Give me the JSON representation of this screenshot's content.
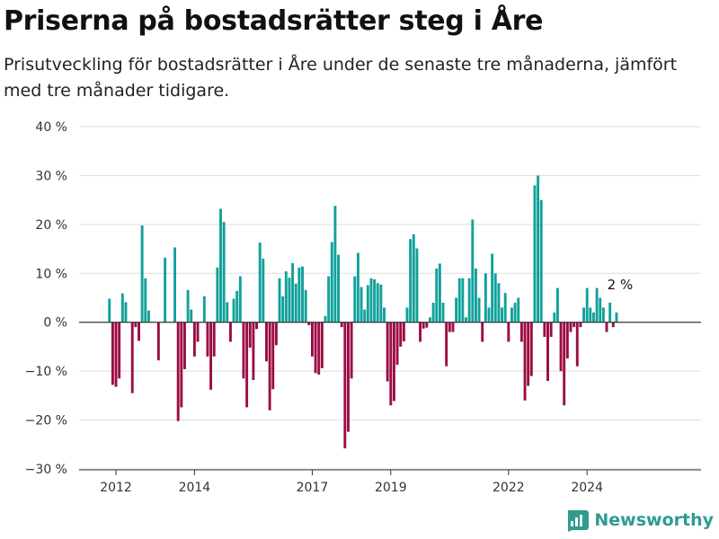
{
  "title": "Priserna på bostadsrätter steg i Åre",
  "subtitle": "Prisutveckling för bostadsrätter i Åre under de senaste tre månaderna, jämfört med tre månader tidigare.",
  "brand": {
    "name": "Newsworthy",
    "icon": "newsworthy-logo-icon"
  },
  "colors": {
    "positive": "#10a19a",
    "negative": "#9b0c44",
    "axis": "#333333",
    "grid": "#dddddd",
    "brand": "#2e9c90"
  },
  "chart_data": {
    "type": "bar",
    "x_start": "2011-11",
    "y_unit": "%",
    "ylim": [
      -30,
      40
    ],
    "yticks": [
      40,
      30,
      20,
      10,
      0,
      -10,
      -20,
      -30
    ],
    "ytick_labels": [
      "40 %",
      "30 %",
      "20 %",
      "10 %",
      "0 %",
      "−10 %",
      "−20 %",
      "−30 %"
    ],
    "xticks": [
      "2012",
      "2014",
      "2017",
      "2019",
      "2022",
      "2024"
    ],
    "xtick_months": [
      "2012-01",
      "2014-01",
      "2017-01",
      "2019-01",
      "2022-01",
      "2024-01"
    ],
    "grid": "horizontal",
    "values": [
      4.8,
      -12.8,
      -13.2,
      -11.5,
      5.9,
      4.1,
      0,
      -14.5,
      -1.0,
      -3.8,
      19.8,
      9.0,
      2.4,
      0,
      0,
      -7.8,
      0,
      13.2,
      0,
      0,
      15.3,
      -20.2,
      -17.4,
      -9.6,
      6.6,
      2.6,
      -7.0,
      -4.0,
      0,
      5.3,
      -7.0,
      -13.8,
      -7.0,
      11.2,
      23.2,
      20.5,
      4.1,
      -4.0,
      4.8,
      6.4,
      9.4,
      -11.5,
      -17.4,
      -5.2,
      -11.8,
      -1.4,
      16.3,
      13.0,
      -8.0,
      -18.0,
      -13.7,
      -4.7,
      9.0,
      5.3,
      10.4,
      9.1,
      12.1,
      7.9,
      11.2,
      11.4,
      6.6,
      -0.6,
      -7.0,
      -10.4,
      -10.7,
      -9.4,
      1.3,
      9.4,
      16.4,
      23.8,
      13.8,
      -1.0,
      -25.8,
      -22.4,
      -11.5,
      9.4,
      14.2,
      7.2,
      2.6,
      7.6,
      9.0,
      8.8,
      8.0,
      7.7,
      3.0,
      -12.1,
      -17.0,
      -16.1,
      -8.7,
      -5.0,
      -3.9,
      3.0,
      17.0,
      18.0,
      15.1,
      -4.0,
      -1.3,
      -1.1,
      1.0,
      4.0,
      11.0,
      12.0,
      4.0,
      -9.0,
      -2.0,
      -2.0,
      5.0,
      9.0,
      9.0,
      1.0,
      9.0,
      21.0,
      11.0,
      5.0,
      -4.0,
      10.0,
      3.0,
      14.0,
      10.0,
      8.0,
      3.0,
      6.0,
      -4.0,
      3.0,
      4.0,
      5.0,
      -4.0,
      -16.0,
      -13.0,
      -11.0,
      28.0,
      30.0,
      25.0,
      -3.0,
      -12.0,
      -3.0,
      2.0,
      7.0,
      -10.0,
      -17.0,
      -7.4,
      -2.0,
      -1.0,
      -9.0,
      -1.0,
      3.0,
      7.0,
      3.0,
      2.0,
      7.0,
      5.0,
      3.0,
      -2.0,
      4.0,
      -1.0,
      2.0
    ],
    "annotation": {
      "text": "2 %",
      "index": 155
    }
  }
}
